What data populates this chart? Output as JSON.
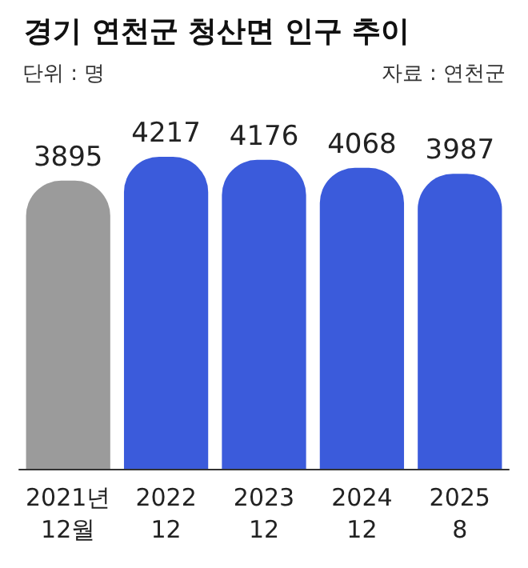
{
  "chart_data": {
    "type": "bar",
    "title": "경기 연천군 청산면 인구 추이",
    "subtitle": "단위 : 명",
    "annotations": [
      "자료 : 연천군"
    ],
    "categories": [
      "2021년\n12월",
      "2022\n12",
      "2023\n12",
      "2024\n12",
      "2025\n8"
    ],
    "values": [
      3895,
      4217,
      4176,
      4068,
      3987
    ],
    "colors": [
      "#9b9b9b",
      "#3b5bdb",
      "#3b5bdb",
      "#3b5bdb",
      "#3b5bdb"
    ],
    "data_labels": true
  }
}
